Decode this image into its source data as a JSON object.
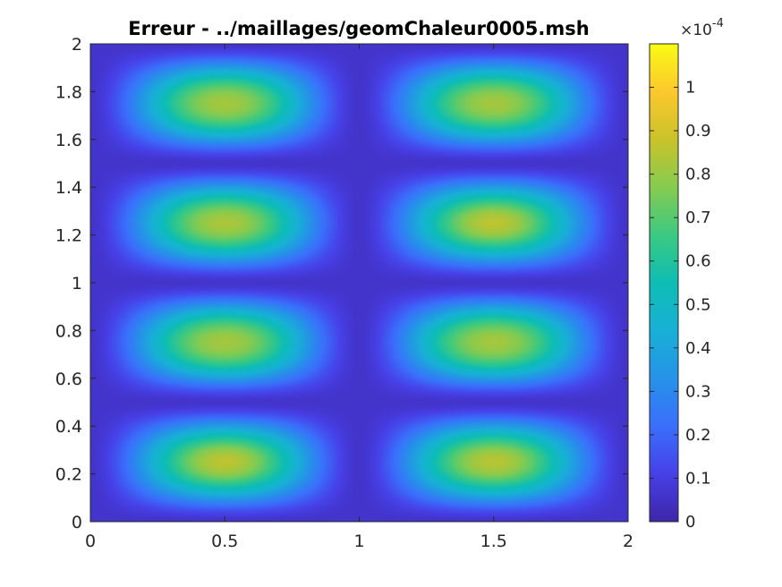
{
  "chart_data": {
    "type": "heatmap",
    "title": "Erreur - ../maillages/geomChaleur0005.msh",
    "xlabel": "",
    "ylabel": "",
    "xlim": [
      0,
      2
    ],
    "ylim": [
      0,
      2
    ],
    "x_ticks": [
      "0",
      "0.5",
      "1",
      "1.5",
      "2"
    ],
    "y_ticks": [
      "0",
      "0.2",
      "0.4",
      "0.6",
      "0.8",
      "1",
      "1.2",
      "1.4",
      "1.6",
      "1.8",
      "2"
    ],
    "field_description": "error field with 8 peaks arranged in a 2x4 grid",
    "peak_centers": [
      {
        "x": 0.5,
        "y": 1.75,
        "value": 8.2e-05
      },
      {
        "x": 1.5,
        "y": 1.75,
        "value": 8.2e-05
      },
      {
        "x": 0.5,
        "y": 1.25,
        "value": 8.3e-05
      },
      {
        "x": 1.5,
        "y": 1.25,
        "value": 8.6e-05
      },
      {
        "x": 0.5,
        "y": 0.75,
        "value": 8.2e-05
      },
      {
        "x": 1.5,
        "y": 0.75,
        "value": 8.2e-05
      },
      {
        "x": 0.5,
        "y": 0.25,
        "value": 8.6e-05
      },
      {
        "x": 1.5,
        "y": 0.25,
        "value": 8.5e-05
      }
    ],
    "colorbar": {
      "colormap": "parula",
      "range": [
        0,
        0.00011
      ],
      "ticks": [
        "0",
        "0.1",
        "0.2",
        "0.3",
        "0.4",
        "0.5",
        "0.6",
        "0.7",
        "0.8",
        "0.9",
        "1"
      ],
      "tick_values": [
        0,
        0.1,
        0.2,
        0.3,
        0.4,
        0.5,
        0.6,
        0.7,
        0.8,
        0.9,
        1.0
      ],
      "max_scaled": 1.1,
      "exponent_label": "×10",
      "exponent": "-4"
    },
    "grid": false,
    "legend": "none"
  }
}
